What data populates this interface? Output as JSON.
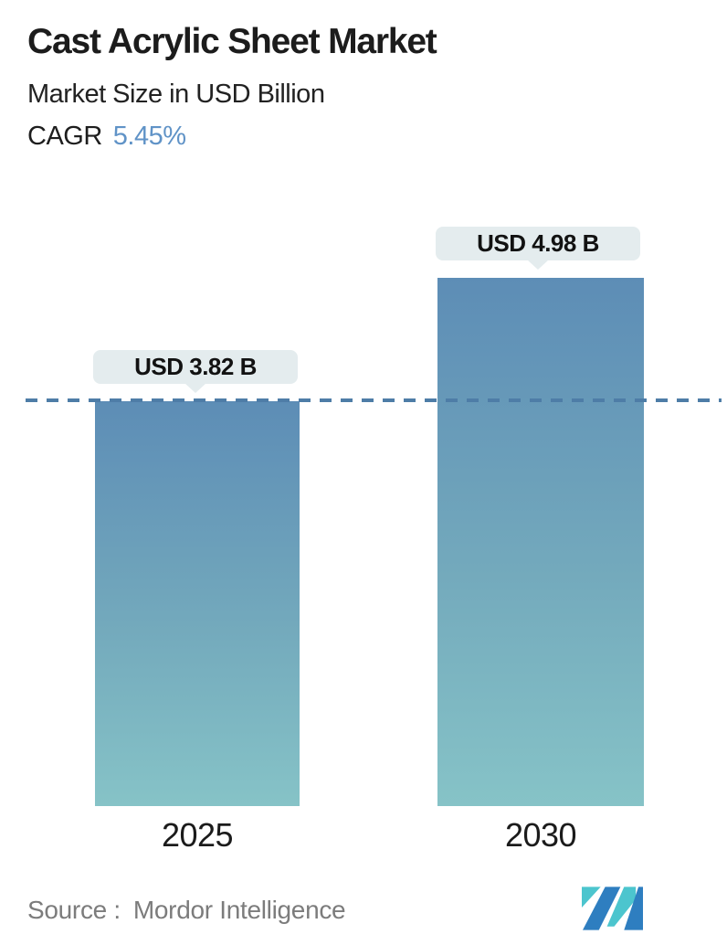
{
  "header": {
    "title": "Cast Acrylic Sheet Market",
    "subtitle": "Market Size in USD Billion",
    "cagr_label": "CAGR",
    "cagr_value": "5.45%",
    "cagr_value_color": "#6093c7"
  },
  "chart_data": {
    "type": "bar",
    "title": "Cast Acrylic Sheet Market",
    "subtitle": "Market Size in USD Billion",
    "unit": "USD Billion",
    "categories": [
      "2025",
      "2030"
    ],
    "values": [
      3.82,
      4.98
    ],
    "value_labels": [
      "USD 3.82 B",
      "USD 4.98 B"
    ],
    "cagr_percent": 5.45,
    "ylim": [
      0,
      5.2
    ],
    "grid": false,
    "legend": "none",
    "reference_line": {
      "value": 3.82,
      "style": "dashed",
      "color": "#4e7da7"
    },
    "bar_gradient_top": "#5d8db6",
    "bar_gradient_bottom": "#86c3c7",
    "label_bubble_bg": "#e4ecee",
    "label_text_color": "#121212"
  },
  "footer": {
    "source_label": "Source :",
    "source_value": "Mordor Intelligence",
    "logo": {
      "name": "mordor-intelligence-logo",
      "teal": "#4cc5ce",
      "blue": "#2e7ec0"
    }
  }
}
